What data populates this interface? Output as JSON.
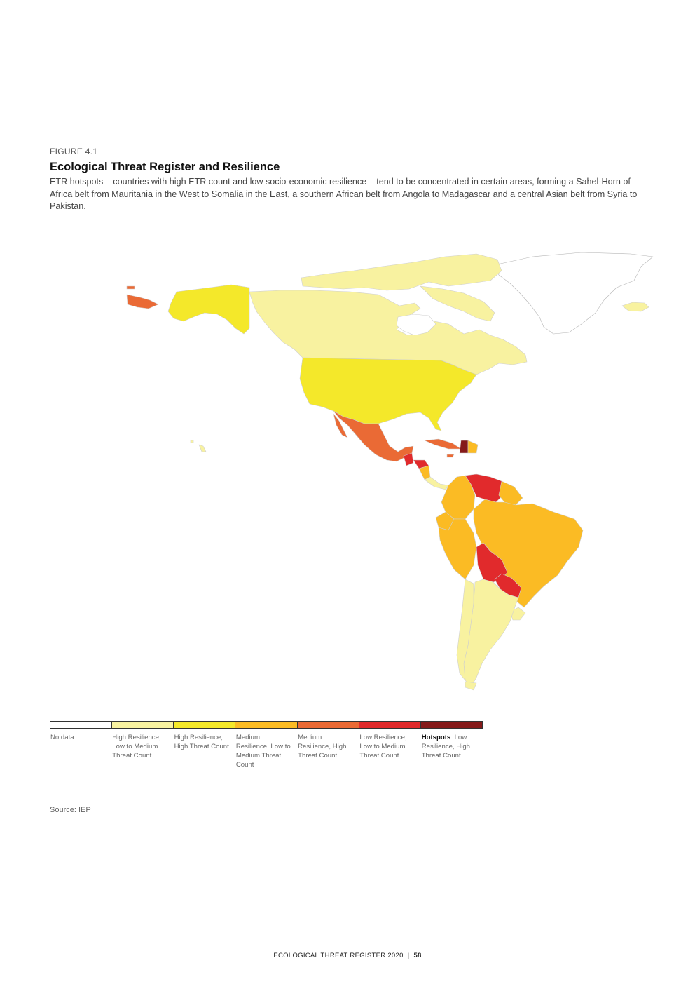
{
  "figure": {
    "label": "FIGURE 4.1",
    "title": "Ecological Threat Register and Resilience",
    "description": "ETR hotspots – countries with high ETR count and low socio-economic resilience – tend to be concentrated in certain areas, forming a Sahel-Horn of Africa belt from Mauritania in the West to Somalia in the East, a southern African belt from Angola to Madagascar and a central Asian belt from Syria to Pakistan."
  },
  "colors": {
    "no_data": "#ffffff",
    "high_res_low_med": "#f8f2a0",
    "high_res_high": "#f4e82a",
    "med_res_low_med": "#fbbb24",
    "med_res_high": "#ea6a35",
    "low_res_low_med": "#e12a2c",
    "hotspot": "#851a1a"
  },
  "legend": [
    {
      "label": "No data",
      "color": "#ffffff"
    },
    {
      "label": "High Resilience, Low to Medium Threat Count",
      "color": "#f8f2a0"
    },
    {
      "label": "High Resilience, High Threat Count",
      "color": "#f4e82a"
    },
    {
      "label": "Medium Resilience, Low to Medium Threat Count",
      "color": "#fbbb24"
    },
    {
      "label": "Medium Resilience, High Threat Count",
      "color": "#ea6a35"
    },
    {
      "label": "Low Resilience, Low to Medium Threat Count",
      "color": "#e12a2c"
    },
    {
      "label_bold": "Hotspots",
      "label_rest": ": Low Resilience, High Threat Count",
      "color": "#851a1a"
    }
  ],
  "source": "Source: IEP",
  "footer": {
    "publication": "ECOLOGICAL THREAT REGISTER 2020",
    "separator": "|",
    "page": "58"
  }
}
